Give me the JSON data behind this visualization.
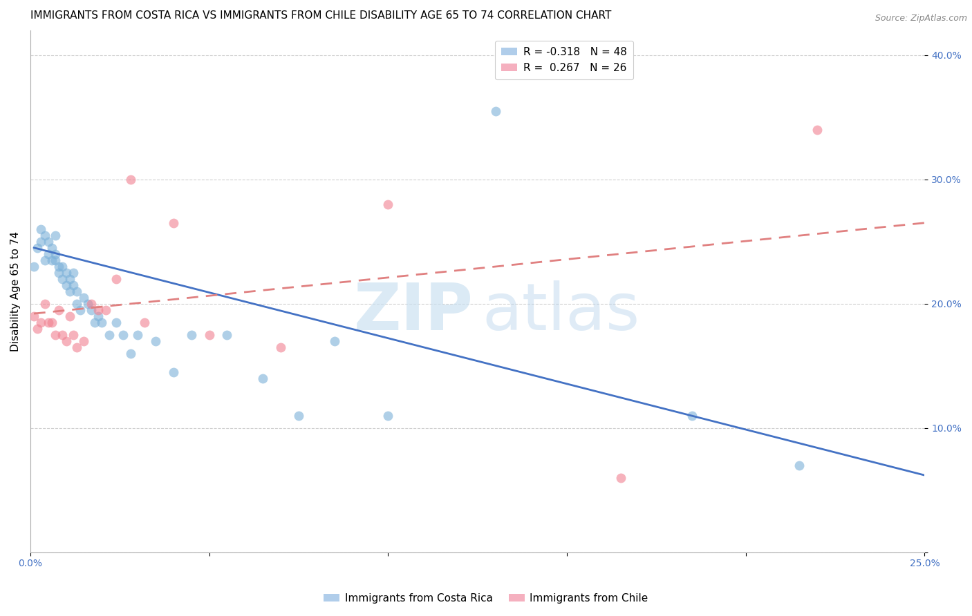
{
  "title": "IMMIGRANTS FROM COSTA RICA VS IMMIGRANTS FROM CHILE DISABILITY AGE 65 TO 74 CORRELATION CHART",
  "source": "Source: ZipAtlas.com",
  "ylabel": "Disability Age 65 to 74",
  "xlim": [
    0.0,
    0.25
  ],
  "ylim": [
    0.0,
    0.42
  ],
  "x_ticks": [
    0.0,
    0.05,
    0.1,
    0.15,
    0.2,
    0.25
  ],
  "x_tick_labels": [
    "0.0%",
    "",
    "",
    "",
    "",
    "25.0%"
  ],
  "y_ticks": [
    0.0,
    0.1,
    0.2,
    0.3,
    0.4
  ],
  "y_tick_labels": [
    "",
    "10.0%",
    "20.0%",
    "30.0%",
    "40.0%"
  ],
  "legend_label1": "R = -0.318   N = 48",
  "legend_label2": "R =  0.267   N = 26",
  "legend_color1": "#a8c8e8",
  "legend_color2": "#f4a8b8",
  "scatter_color1": "#7ab0d8",
  "scatter_color2": "#f08090",
  "watermark_zip": "ZIP",
  "watermark_atlas": "atlas",
  "costa_rica_x": [
    0.001,
    0.002,
    0.003,
    0.003,
    0.004,
    0.004,
    0.005,
    0.005,
    0.006,
    0.006,
    0.007,
    0.007,
    0.007,
    0.008,
    0.008,
    0.009,
    0.009,
    0.01,
    0.01,
    0.011,
    0.011,
    0.012,
    0.012,
    0.013,
    0.013,
    0.014,
    0.015,
    0.016,
    0.017,
    0.018,
    0.019,
    0.02,
    0.022,
    0.024,
    0.026,
    0.028,
    0.03,
    0.035,
    0.04,
    0.045,
    0.055,
    0.065,
    0.075,
    0.085,
    0.1,
    0.13,
    0.185,
    0.215
  ],
  "costa_rica_y": [
    0.23,
    0.245,
    0.25,
    0.26,
    0.255,
    0.235,
    0.24,
    0.25,
    0.235,
    0.245,
    0.24,
    0.235,
    0.255,
    0.225,
    0.23,
    0.22,
    0.23,
    0.215,
    0.225,
    0.21,
    0.22,
    0.215,
    0.225,
    0.2,
    0.21,
    0.195,
    0.205,
    0.2,
    0.195,
    0.185,
    0.19,
    0.185,
    0.175,
    0.185,
    0.175,
    0.16,
    0.175,
    0.17,
    0.145,
    0.175,
    0.175,
    0.14,
    0.11,
    0.17,
    0.11,
    0.355,
    0.11,
    0.07
  ],
  "chile_x": [
    0.001,
    0.002,
    0.003,
    0.004,
    0.005,
    0.006,
    0.007,
    0.008,
    0.009,
    0.01,
    0.011,
    0.012,
    0.013,
    0.015,
    0.017,
    0.019,
    0.021,
    0.024,
    0.028,
    0.032,
    0.04,
    0.05,
    0.07,
    0.1,
    0.165,
    0.22
  ],
  "chile_y": [
    0.19,
    0.18,
    0.185,
    0.2,
    0.185,
    0.185,
    0.175,
    0.195,
    0.175,
    0.17,
    0.19,
    0.175,
    0.165,
    0.17,
    0.2,
    0.195,
    0.195,
    0.22,
    0.3,
    0.185,
    0.265,
    0.175,
    0.165,
    0.28,
    0.06,
    0.34
  ],
  "bg_color": "#ffffff",
  "grid_color": "#d0d0d0",
  "scatter_alpha": 0.6,
  "scatter_size": 100,
  "line_color_cr": "#4472c4",
  "line_color_ch": "#e08080",
  "tick_color": "#4472c4",
  "title_fontsize": 11,
  "axis_label_fontsize": 11,
  "tick_fontsize": 10,
  "source_fontsize": 9,
  "cr_line_x0": 0.001,
  "cr_line_x1": 0.25,
  "cr_line_y0": 0.245,
  "cr_line_y1": 0.062,
  "ch_line_x0": 0.001,
  "ch_line_x1": 0.25,
  "ch_line_y0": 0.192,
  "ch_line_y1": 0.265
}
